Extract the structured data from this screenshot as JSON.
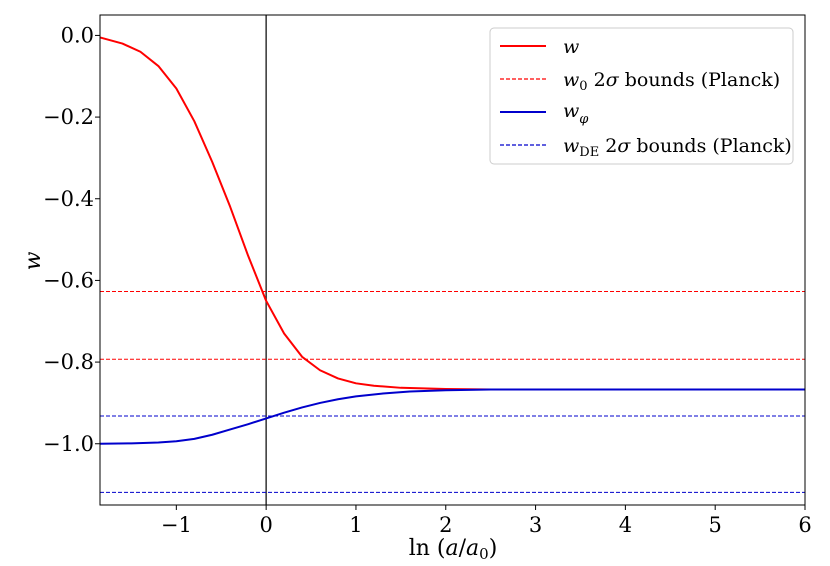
{
  "chart_data": {
    "type": "line",
    "xlabel": "ln (a/a₀)",
    "ylabel": "w",
    "xlim": [
      -1.85,
      6.0
    ],
    "ylim": [
      -1.15,
      0.05
    ],
    "xticks": [
      -1,
      0,
      1,
      2,
      3,
      4,
      5,
      6
    ],
    "xtick_labels": [
      "−1",
      "0",
      "1",
      "2",
      "3",
      "4",
      "5",
      "6"
    ],
    "yticks": [
      0.0,
      -0.2,
      -0.4,
      -0.6,
      -0.8,
      -1.0
    ],
    "ytick_labels": [
      "0.0",
      "−0.2",
      "−0.4",
      "−0.6",
      "−0.8",
      "−1.0"
    ],
    "grid": false,
    "legend_position": "top-right",
    "vline_x": 0,
    "series": [
      {
        "name": "w",
        "color": "#ff0000",
        "style": "solid",
        "x": [
          -1.85,
          -1.6,
          -1.4,
          -1.2,
          -1.0,
          -0.8,
          -0.6,
          -0.4,
          -0.2,
          0.0,
          0.2,
          0.4,
          0.6,
          0.8,
          1.0,
          1.2,
          1.5,
          2.0,
          2.5,
          3.0,
          4.0,
          5.0,
          6.0
        ],
        "y": [
          -0.005,
          -0.02,
          -0.04,
          -0.075,
          -0.13,
          -0.21,
          -0.31,
          -0.42,
          -0.54,
          -0.65,
          -0.73,
          -0.787,
          -0.82,
          -0.84,
          -0.852,
          -0.858,
          -0.863,
          -0.866,
          -0.867,
          -0.867,
          -0.867,
          -0.867,
          -0.867
        ]
      },
      {
        "name": "w_φ",
        "color": "#0000cc",
        "style": "solid",
        "x": [
          -1.85,
          -1.5,
          -1.2,
          -1.0,
          -0.8,
          -0.6,
          -0.4,
          -0.2,
          0.0,
          0.2,
          0.4,
          0.6,
          0.8,
          1.0,
          1.3,
          1.6,
          2.0,
          2.5,
          3.0,
          4.0,
          5.0,
          6.0
        ],
        "y": [
          -1.0,
          -0.999,
          -0.997,
          -0.994,
          -0.988,
          -0.978,
          -0.965,
          -0.952,
          -0.938,
          -0.924,
          -0.911,
          -0.9,
          -0.891,
          -0.884,
          -0.877,
          -0.872,
          -0.869,
          -0.867,
          -0.867,
          -0.867,
          -0.867,
          -0.867
        ]
      }
    ],
    "hlines": [
      {
        "y": -0.627,
        "color": "#ff0000",
        "style": "dashed"
      },
      {
        "y": -0.793,
        "color": "#ff0000",
        "style": "dashed"
      },
      {
        "y": -0.932,
        "color": "#0000cc",
        "style": "dashed"
      },
      {
        "y": -1.119,
        "color": "#0000cc",
        "style": "dashed"
      }
    ],
    "legend": [
      {
        "label": "w",
        "color": "#ff0000",
        "style": "solid"
      },
      {
        "label": "w₀ 2σ bounds (Planck)",
        "color": "#ff0000",
        "style": "dashed"
      },
      {
        "label": "wφ",
        "color": "#0000cc",
        "style": "solid"
      },
      {
        "label": "w_DE 2σ bounds (Planck)",
        "color": "#0000cc",
        "style": "dashed"
      }
    ]
  }
}
